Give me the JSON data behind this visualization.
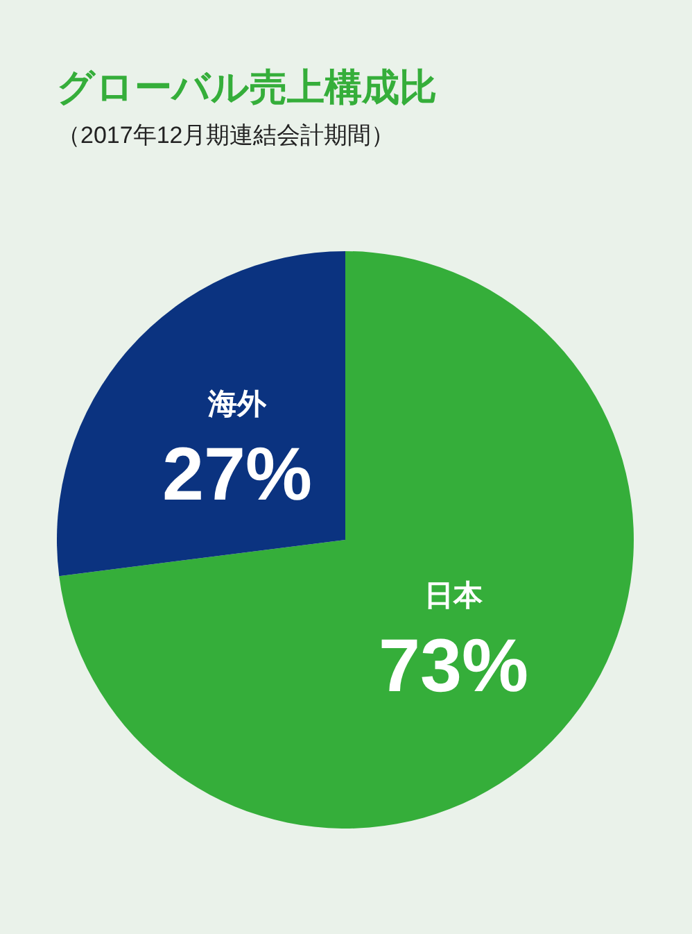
{
  "chart_data": {
    "type": "pie",
    "title": "グローバル売上構成比",
    "subtitle": "（2017年12月期連結会計期間）",
    "categories": [
      "日本",
      "海外"
    ],
    "values": [
      73,
      27
    ],
    "colors": [
      "#35ae3a",
      "#0b3380"
    ],
    "value_labels": [
      "73%",
      "27%"
    ],
    "legend": false
  }
}
